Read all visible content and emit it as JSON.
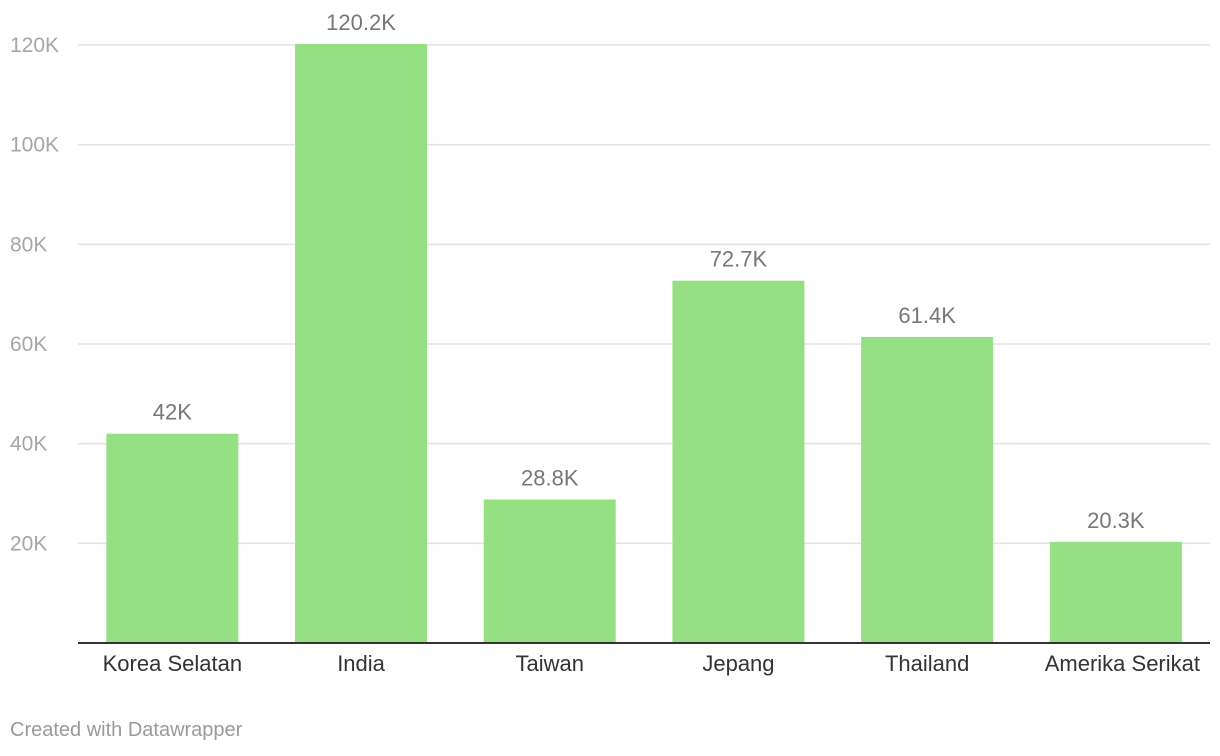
{
  "chart_data": {
    "type": "bar",
    "title": "",
    "xlabel": "",
    "ylabel": "",
    "categories": [
      "Korea Selatan",
      "India",
      "Taiwan",
      "Jepang",
      "Thailand",
      "Amerika Serikat"
    ],
    "values": [
      42000,
      120200,
      28800,
      72700,
      61400,
      20300
    ],
    "data_labels": [
      "42K",
      "120.2K",
      "28.8K",
      "72.7K",
      "61.4K",
      "20.3K"
    ],
    "yticks": [
      20000,
      40000,
      60000,
      80000,
      100000,
      120000
    ],
    "ytick_labels": [
      "20K",
      "40K",
      "60K",
      "80K",
      "100K",
      "120K"
    ],
    "ylim": [
      0,
      120000
    ],
    "grid": true,
    "legend": "none",
    "colors": {
      "bar": "#95e083"
    }
  },
  "footer": {
    "credit": "Created with Datawrapper"
  }
}
